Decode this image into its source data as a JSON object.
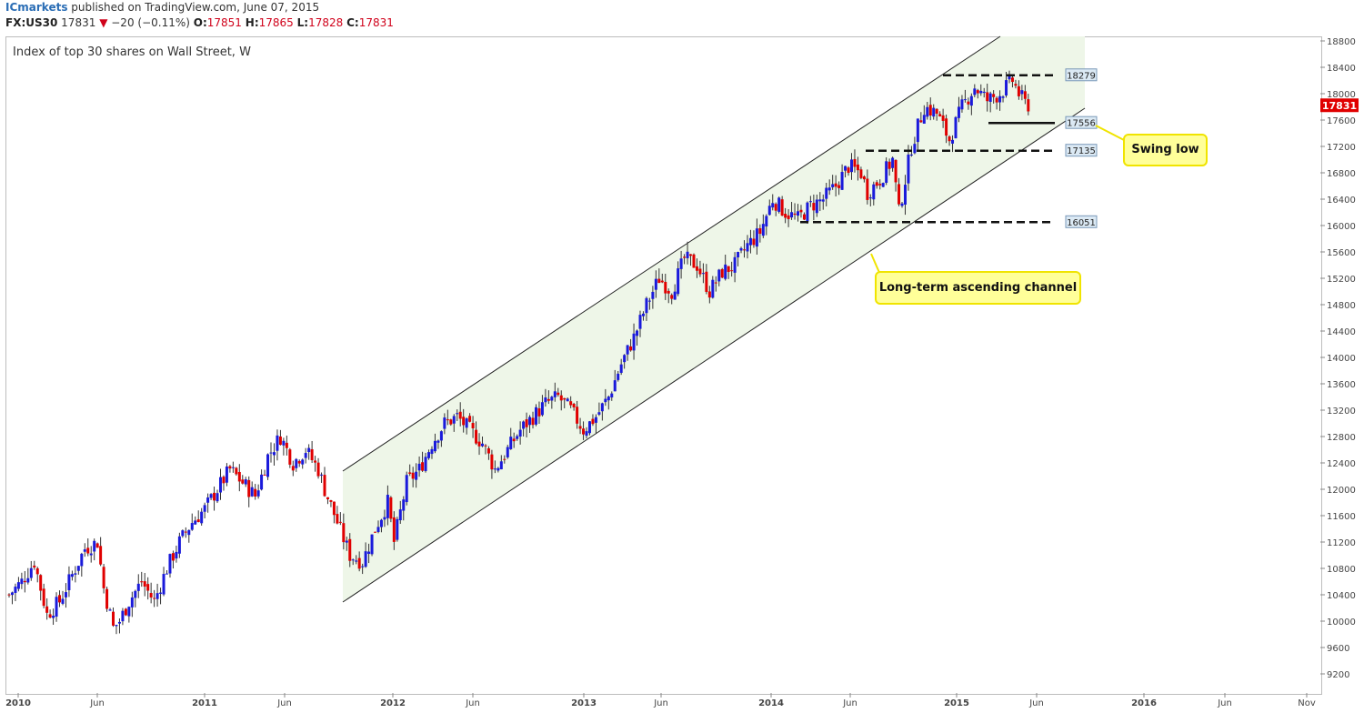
{
  "header": {
    "author": "ICmarkets",
    "published_text": "published on TradingView.com, June 07, 2015",
    "symbol": "FX:US30",
    "last": "17831",
    "change": "−20 (−0.11%)",
    "o_label": "O:",
    "o_value": "17851",
    "h_label": "H:",
    "h_value": "17865",
    "l_label": "L:",
    "l_value": "17828",
    "c_label": "C:",
    "c_value": "17831"
  },
  "chart_title": "Index of top 30 shares on Wall Street, W",
  "price_badge": "17831",
  "annotations": {
    "swing_low": "Swing low",
    "channel": "Long-term ascending channel"
  },
  "colors": {
    "up_candle": "#1a1adb",
    "down_candle": "#e00000",
    "channel_fill": "#eef6e8",
    "callout_fill": "#ffff99",
    "callout_border": "#f0e400",
    "price_badge": "#e00000",
    "level_label_fill": "#dbe9f4"
  },
  "chart_data": {
    "type": "candlestick",
    "title": "Index of top 30 shares on Wall Street, W",
    "ylim": [
      9000,
      18900
    ],
    "y_ticks": [
      "18800",
      "18400",
      "18000",
      "17600",
      "17200",
      "16800",
      "16400",
      "16000",
      "15600",
      "15200",
      "14800",
      "14400",
      "14000",
      "13600",
      "13200",
      "12800",
      "12400",
      "12000",
      "11600",
      "11200",
      "10800",
      "10400",
      "10000",
      "9600",
      "9200"
    ],
    "x_ticks": [
      "2010",
      "Jun",
      "2011",
      "Jun",
      "2012",
      "Jun",
      "2013",
      "Jun",
      "2014",
      "Jun",
      "2015",
      "Jun",
      "2016",
      "Jun",
      "Nov"
    ],
    "levels": [
      {
        "label": "18279",
        "value": 18279,
        "style": "dashed"
      },
      {
        "label": "17556",
        "value": 17556,
        "style": "solid"
      },
      {
        "label": "17135",
        "value": 17135,
        "style": "dashed"
      },
      {
        "label": "16051",
        "value": 16051,
        "style": "dashed"
      }
    ],
    "last_price": 17831,
    "anchors": [
      [
        0,
        10400
      ],
      [
        4,
        10600
      ],
      [
        8,
        10900
      ],
      [
        12,
        10100
      ],
      [
        16,
        10300
      ],
      [
        20,
        10700
      ],
      [
        24,
        11100
      ],
      [
        28,
        11200
      ],
      [
        30,
        10500
      ],
      [
        33,
        9900
      ],
      [
        35,
        10000
      ],
      [
        38,
        10300
      ],
      [
        42,
        10600
      ],
      [
        46,
        10300
      ],
      [
        50,
        10800
      ],
      [
        54,
        11200
      ],
      [
        58,
        11500
      ],
      [
        62,
        11700
      ],
      [
        66,
        12000
      ],
      [
        70,
        12300
      ],
      [
        74,
        12100
      ],
      [
        78,
        11900
      ],
      [
        82,
        12500
      ],
      [
        86,
        12800
      ],
      [
        90,
        12400
      ],
      [
        94,
        12600
      ],
      [
        98,
        12300
      ],
      [
        100,
        12000
      ],
      [
        104,
        11500
      ],
      [
        108,
        11000
      ],
      [
        112,
        10900
      ],
      [
        116,
        11400
      ],
      [
        120,
        11800
      ],
      [
        122,
        11200
      ],
      [
        126,
        12100
      ],
      [
        130,
        12300
      ],
      [
        134,
        12700
      ],
      [
        138,
        13000
      ],
      [
        142,
        13100
      ],
      [
        146,
        12900
      ],
      [
        150,
        12700
      ],
      [
        154,
        12300
      ],
      [
        158,
        12600
      ],
      [
        162,
        12900
      ],
      [
        166,
        13100
      ],
      [
        170,
        13300
      ],
      [
        174,
        13400
      ],
      [
        178,
        13200
      ],
      [
        182,
        12900
      ],
      [
        186,
        13100
      ],
      [
        190,
        13400
      ],
      [
        194,
        13900
      ],
      [
        198,
        14300
      ],
      [
        202,
        14800
      ],
      [
        206,
        15200
      ],
      [
        210,
        15000
      ],
      [
        214,
        15500
      ],
      [
        218,
        15400
      ],
      [
        222,
        15000
      ],
      [
        226,
        15300
      ],
      [
        230,
        15400
      ],
      [
        234,
        15700
      ],
      [
        238,
        15900
      ],
      [
        242,
        16400
      ],
      [
        246,
        16200
      ],
      [
        250,
        16100
      ],
      [
        254,
        16300
      ],
      [
        258,
        16400
      ],
      [
        262,
        16600
      ],
      [
        266,
        16900
      ],
      [
        270,
        16800
      ],
      [
        272,
        16500
      ],
      [
        276,
        16700
      ],
      [
        280,
        17000
      ],
      [
        282,
        16200
      ],
      [
        286,
        17200
      ],
      [
        290,
        17800
      ],
      [
        294,
        17700
      ],
      [
        298,
        17300
      ],
      [
        302,
        17800
      ],
      [
        306,
        18100
      ],
      [
        310,
        17900
      ],
      [
        314,
        18000
      ],
      [
        318,
        18200
      ],
      [
        320,
        18000
      ],
      [
        322,
        17850
      ],
      [
        323,
        17831
      ]
    ]
  }
}
